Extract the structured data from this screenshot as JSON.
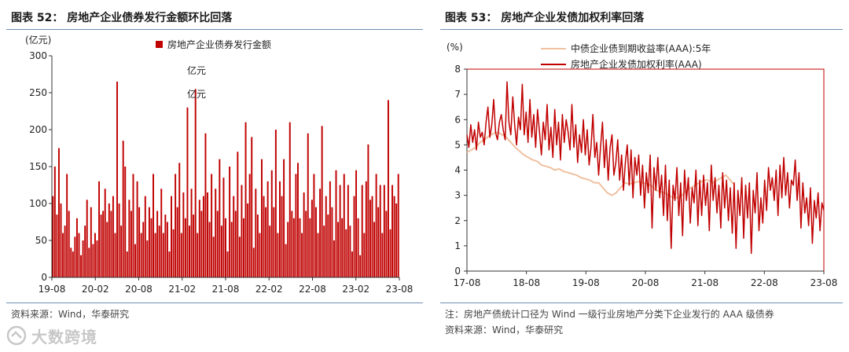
{
  "left": {
    "title": "图表 52：  房地产企业债券发行金额环比回落",
    "source": "资料来源：Wind，华泰研究",
    "chart_data": {
      "type": "bar",
      "ylabel": "(亿元)",
      "ylim": [
        0,
        300
      ],
      "yticks": [
        0,
        50,
        100,
        150,
        200,
        250,
        300
      ],
      "xticks": [
        "19-08",
        "20-02",
        "20-08",
        "21-02",
        "21-08",
        "22-02",
        "22-08",
        "23-02",
        "23-08"
      ],
      "legend": "房地产企业债券发行金额",
      "annotations": [
        "亿元",
        "亿元"
      ],
      "color": "#c00000",
      "values": [
        110,
        150,
        85,
        175,
        100,
        60,
        70,
        140,
        90,
        40,
        35,
        55,
        80,
        60,
        30,
        50,
        70,
        105,
        40,
        95,
        45,
        60,
        50,
        130,
        85,
        90,
        120,
        75,
        100,
        90,
        110,
        60,
        265,
        100,
        70,
        185,
        150,
        35,
        105,
        90,
        140,
        45,
        130,
        95,
        60,
        75,
        110,
        50,
        95,
        80,
        140,
        60,
        90,
        70,
        120,
        60,
        85,
        75,
        35,
        110,
        65,
        140,
        95,
        155,
        60,
        115,
        80,
        230,
        70,
        120,
        85,
        255,
        60,
        105,
        90,
        110,
        195,
        115,
        75,
        140,
        55,
        120,
        90,
        160,
        70,
        135,
        80,
        35,
        150,
        75,
        110,
        90,
        170,
        55,
        125,
        80,
        210,
        100,
        140,
        190,
        40,
        120,
        85,
        60,
        160,
        110,
        95,
        130,
        70,
        145,
        95,
        200,
        60,
        130,
        110,
        160,
        45,
        75,
        210,
        90,
        80,
        140,
        155,
        80,
        60,
        115,
        90,
        195,
        80,
        105,
        140,
        95,
        60,
        120,
        205,
        70,
        110,
        85,
        130,
        95,
        50,
        145,
        75,
        125,
        80,
        140,
        65,
        125,
        70,
        35,
        110,
        145,
        80,
        30,
        125,
        60,
        130,
        180,
        105,
        110,
        75,
        140,
        95,
        125,
        60,
        125,
        90,
        240,
        65,
        125,
        110,
        100,
        140
      ]
    }
  },
  "right": {
    "title": "图表 53：  房地产企业发债加权利率回落",
    "note": "注：房地产债统计口径为 Wind 一级行业房地产分类下企业发行的 AAA 级债券",
    "source": "资料来源：Wind，华泰研究",
    "chart_data": {
      "type": "line",
      "ylabel": "(%)",
      "ylim": [
        0,
        8
      ],
      "yticks": [
        0,
        1,
        2,
        3,
        4,
        5,
        6,
        7,
        8
      ],
      "xticks": [
        "17-08",
        "18-08",
        "19-08",
        "20-08",
        "21-08",
        "22-08",
        "23-08"
      ],
      "series": [
        {
          "name": "中债企业债到期收益率(AAA):5年",
          "color": "#f0c0a0",
          "values": [
            4.7,
            4.8,
            4.9,
            5.1,
            5.2,
            5.35,
            5.45,
            5.5,
            5.4,
            5.3,
            5.1,
            4.9,
            4.75,
            4.6,
            4.5,
            4.4,
            4.35,
            4.2,
            4.15,
            4.1,
            4.0,
            4.05,
            3.95,
            3.9,
            3.85,
            3.8,
            3.7,
            3.65,
            3.6,
            3.5,
            3.5,
            3.3,
            3.1,
            3.0,
            3.1,
            3.3,
            3.5,
            3.45,
            3.5,
            3.55,
            3.5,
            3.45,
            3.4,
            3.2,
            3.15,
            3.1,
            3.0,
            2.9,
            2.9,
            3.0,
            3.2,
            3.3,
            3.4,
            3.5,
            3.6,
            3.6,
            3.5,
            3.6,
            3.7,
            3.8,
            3.6,
            3.4
          ]
        },
        {
          "name": "房地产企业发债加权利率(AAA)",
          "color": "#c00000",
          "values": [
            5.4,
            4.9,
            5.8,
            5.1,
            5.6,
            4.8,
            5.9,
            5.3,
            5.5,
            5.0,
            5.9,
            6.5,
            5.3,
            5.8,
            6.8,
            5.5,
            5.2,
            5.9,
            6.2,
            5.6,
            5.2,
            7.5,
            5.9,
            5.4,
            6.9,
            5.8,
            5.0,
            6.1,
            5.6,
            7.4,
            5.4,
            6.3,
            5.1,
            6.8,
            5.3,
            6.2,
            4.9,
            6.4,
            5.5,
            4.6,
            5.9,
            5.2,
            6.6,
            4.8,
            5.7,
            4.5,
            6.4,
            5.0,
            5.9,
            4.4,
            6.2,
            5.1,
            6.0,
            5.5,
            4.8,
            6.6,
            4.9,
            5.8,
            4.3,
            5.4,
            4.7,
            6.0,
            4.6,
            5.6,
            4.2,
            4.9,
            6.2,
            4.5,
            5.1,
            3.8,
            4.9,
            5.9,
            4.1,
            5.2,
            3.6,
            4.9,
            5.4,
            3.8,
            4.3,
            5.2,
            3.6,
            4.6,
            3.2,
            4.3,
            5.0,
            3.4,
            4.8,
            2.9,
            4.5,
            3.8,
            4.6,
            3.0,
            4.2,
            2.5,
            3.9,
            3.1,
            4.6,
            1.7,
            4.1,
            3.2,
            4.5,
            2.9,
            3.8,
            2.2,
            4.2,
            2.0,
            3.6,
            0.9,
            3.4,
            2.8,
            4.1,
            2.2,
            3.5,
            1.4,
            4.0,
            2.8,
            3.7,
            1.9,
            3.3,
            2.7,
            4.0,
            1.8,
            3.6,
            2.2,
            3.8,
            2.6,
            3.5,
            1.6,
            4.2,
            2.8,
            3.7,
            2.3,
            3.4,
            1.7,
            3.9,
            2.5,
            3.6,
            2.0,
            3.3,
            1.5,
            3.5,
            0.9,
            3.2,
            2.2,
            3.7,
            1.3,
            3.4,
            2.1,
            3.5,
            0.7,
            3.2,
            2.3,
            3.9,
            1.6,
            2.9,
            1.9,
            3.6,
            2.4,
            4.1,
            3.2,
            3.7,
            2.8,
            4.0,
            2.2,
            4.2,
            2.9,
            4.5,
            3.0,
            3.9,
            2.5,
            3.6,
            3.4,
            4.4,
            2.8,
            3.9,
            1.7,
            3.5,
            2.3,
            2.9,
            1.8,
            3.3,
            1.1,
            2.8,
            2.1,
            3.1,
            1.6,
            2.7,
            2.4
          ]
        }
      ]
    }
  },
  "watermark": "大数跨境"
}
